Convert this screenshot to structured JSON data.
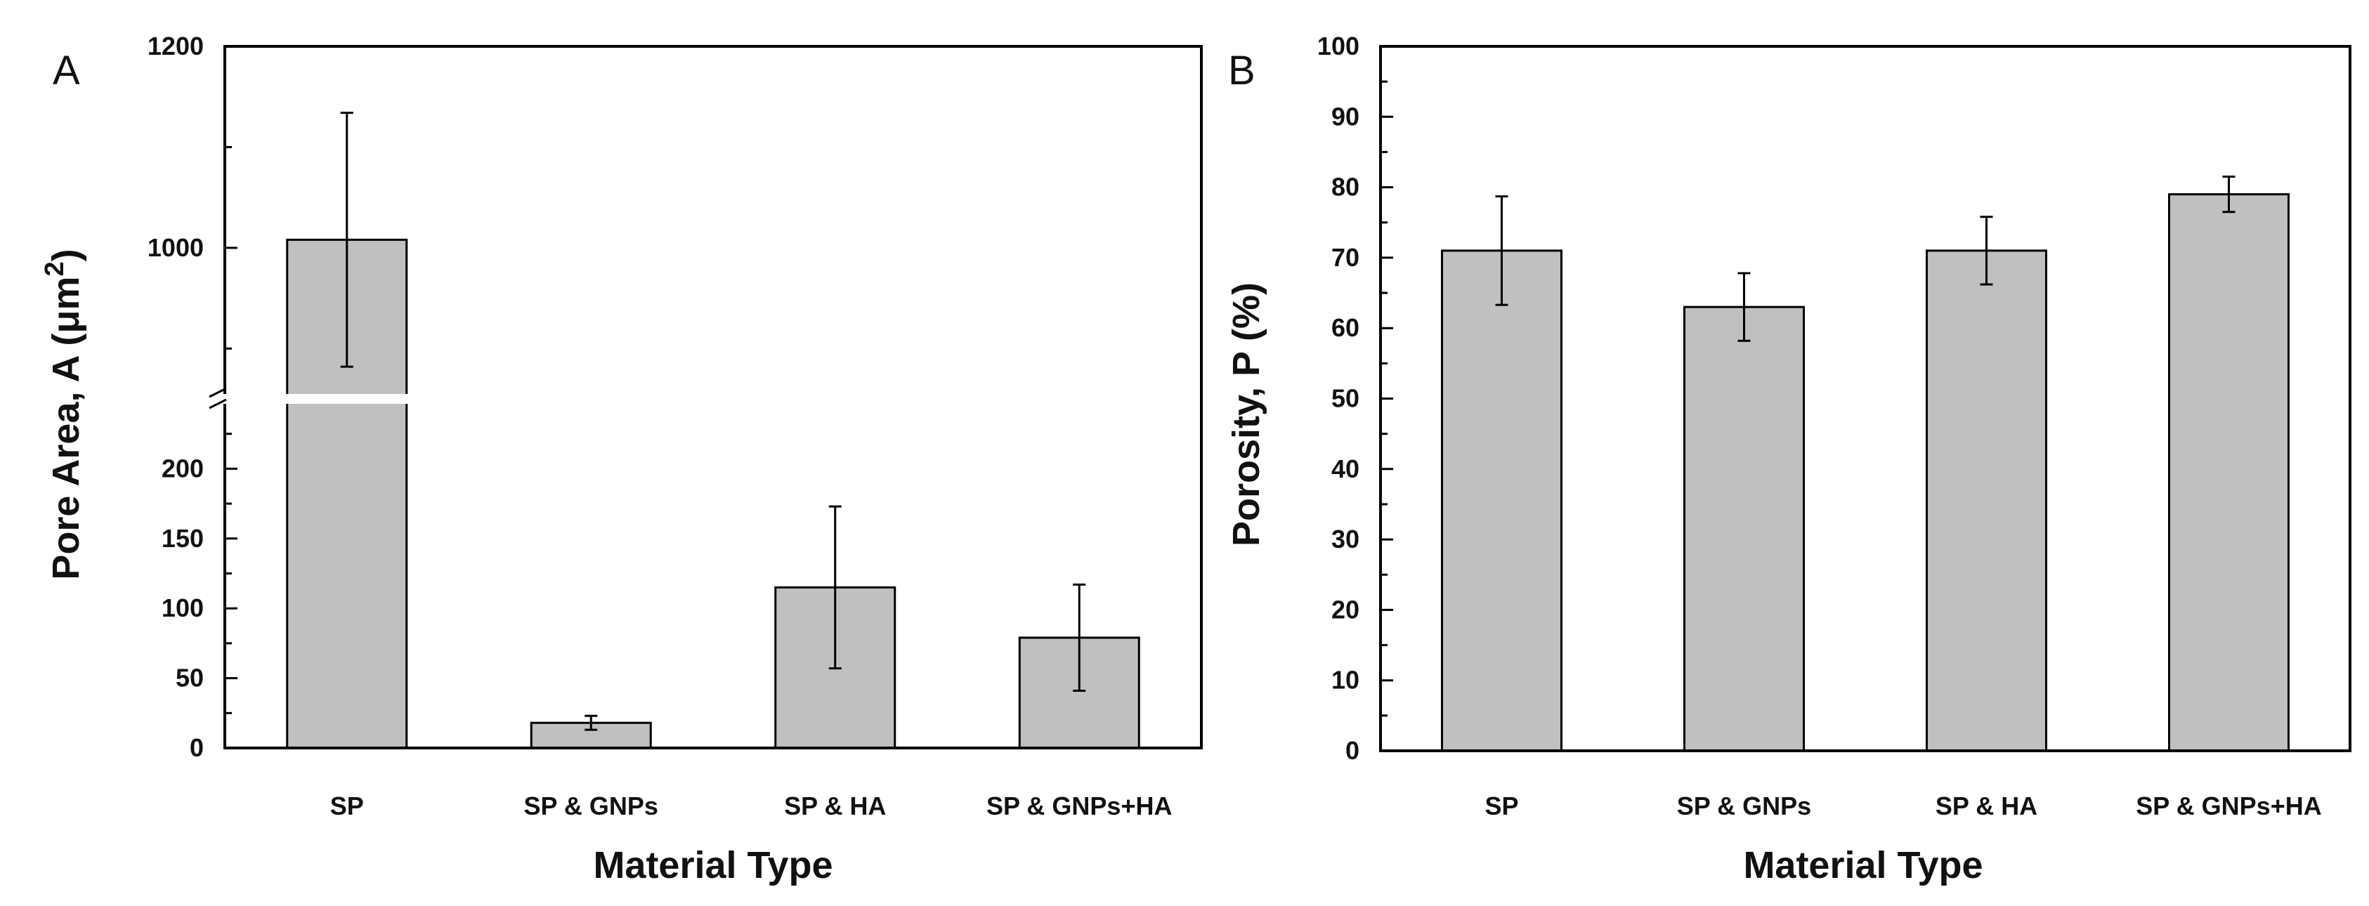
{
  "chart_data": [
    {
      "type": "bar",
      "panel_label": "A",
      "title": "",
      "categories": [
        "SP",
        "SP & GNPs",
        "SP & HA",
        "SP & GNPs+HA"
      ],
      "values": [
        1008,
        18,
        115,
        79
      ],
      "errors": [
        126,
        5,
        58,
        38
      ],
      "xlabel": "Material Type",
      "ylabel_text": "Pore Area, A (μm",
      "ylabel_sup": "2",
      "ylabel_close": ")",
      "ylabel": "Pore Area, A (μm2)",
      "axis_break": true,
      "lower_range": [
        0,
        250
      ],
      "upper_range": [
        850,
        1200
      ],
      "lower_ticks": [
        0,
        50,
        100,
        150,
        200
      ],
      "lower_tick_labels": [
        "0",
        "50",
        "100",
        "150",
        "200"
      ],
      "upper_ticks": [
        1000,
        1200
      ],
      "upper_tick_labels": [
        "1000",
        "1200"
      ],
      "upper_minor_ticks": [
        900,
        1100
      ],
      "bar_color": "#c0c0c0",
      "grid": false
    },
    {
      "type": "bar",
      "panel_label": "B",
      "title": "",
      "categories": [
        "SP",
        "SP & GNPs",
        "SP & HA",
        "SP & GNPs+HA"
      ],
      "values": [
        71,
        63,
        71,
        79
      ],
      "errors": [
        7.7,
        4.8,
        4.8,
        2.5
      ],
      "xlabel": "Material Type",
      "ylabel": "Porosity, P (%)",
      "ylim": [
        0,
        100
      ],
      "yticks": [
        0,
        10,
        20,
        30,
        40,
        50,
        60,
        70,
        80,
        90,
        100
      ],
      "ytick_labels": [
        "0",
        "10",
        "20",
        "30",
        "40",
        "50",
        "60",
        "70",
        "80",
        "90",
        "100"
      ],
      "bar_color": "#c0c0c0",
      "grid": false
    }
  ]
}
